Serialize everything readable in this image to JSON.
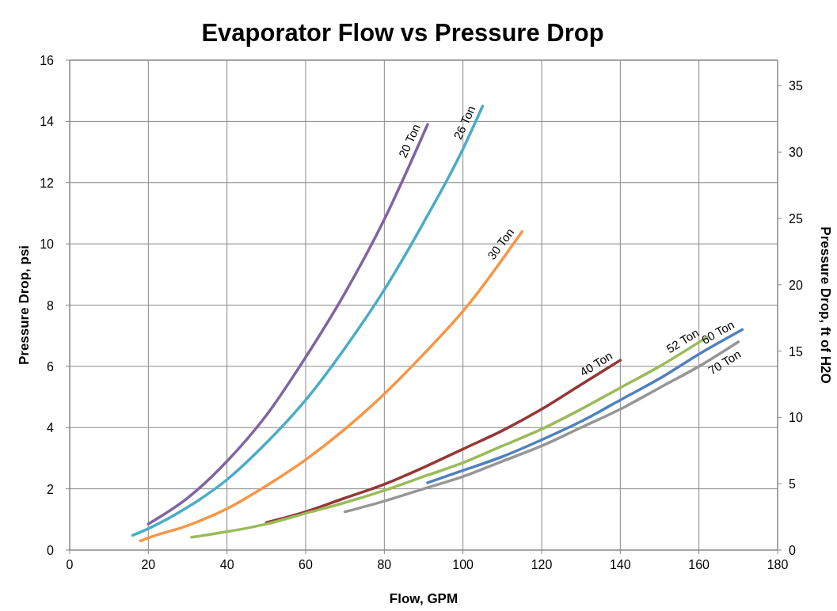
{
  "chart_data": {
    "type": "line",
    "title": "Evaporator Flow vs Pressure Drop",
    "xlabel": "Flow, GPM",
    "ylabel": "Pressure Drop, psi",
    "y2label": "Pressure Drop, ft of H2O",
    "xlim": [
      0,
      180
    ],
    "xticks": [
      0,
      20,
      40,
      60,
      80,
      100,
      120,
      140,
      160,
      180
    ],
    "ylim": [
      0,
      16
    ],
    "yticks": [
      0,
      2,
      4,
      6,
      8,
      10,
      12,
      14,
      16
    ],
    "y2lim": [
      0,
      36.93
    ],
    "y2ticks": [
      0,
      5,
      10,
      15,
      20,
      25,
      30,
      35
    ],
    "grid": true,
    "marker": "none",
    "line_style": "solid",
    "series": [
      {
        "name": "20 Ton",
        "color": "#8064a2",
        "x": [
          20,
          30,
          40,
          50,
          60,
          70,
          80,
          91
        ],
        "values": [
          0.85,
          1.7,
          2.9,
          4.4,
          6.3,
          8.4,
          10.8,
          13.9
        ]
      },
      {
        "name": "26 Ton",
        "color": "#4bacc6",
        "x": [
          16,
          20,
          30,
          40,
          50,
          60,
          70,
          80,
          90,
          100,
          105
        ],
        "values": [
          0.48,
          0.7,
          1.4,
          2.3,
          3.5,
          4.9,
          6.6,
          8.5,
          10.7,
          13.1,
          14.5
        ]
      },
      {
        "name": "30 Ton",
        "color": "#f79646",
        "x": [
          18,
          20,
          30,
          40,
          50,
          60,
          70,
          80,
          90,
          100,
          115
        ],
        "values": [
          0.3,
          0.4,
          0.8,
          1.35,
          2.1,
          2.95,
          3.95,
          5.1,
          6.4,
          7.8,
          10.4
        ]
      },
      {
        "name": "40 Ton",
        "color": "#953735",
        "x": [
          50,
          60,
          70,
          80,
          90,
          100,
          110,
          120,
          130,
          140
        ],
        "values": [
          0.9,
          1.25,
          1.7,
          2.15,
          2.7,
          3.3,
          3.9,
          4.6,
          5.4,
          6.2
        ]
      },
      {
        "name": "52 Ton",
        "color": "#9bbb59",
        "x": [
          31,
          40,
          50,
          60,
          70,
          80,
          90,
          100,
          110,
          120,
          130,
          140,
          150,
          162
        ],
        "values": [
          0.42,
          0.6,
          0.85,
          1.2,
          1.55,
          1.95,
          2.4,
          2.85,
          3.4,
          3.95,
          4.6,
          5.3,
          6.0,
          6.95
        ]
      },
      {
        "name": "60 Ton",
        "color": "#4f81bd",
        "x": [
          91,
          100,
          110,
          120,
          130,
          140,
          150,
          160,
          171
        ],
        "values": [
          2.2,
          2.6,
          3.05,
          3.6,
          4.2,
          4.9,
          5.6,
          6.4,
          7.2
        ]
      },
      {
        "name": "70 Ton",
        "color": "#969696",
        "x": [
          70,
          80,
          90,
          100,
          110,
          120,
          130,
          140,
          150,
          160,
          170
        ],
        "values": [
          1.25,
          1.6,
          2.0,
          2.4,
          2.9,
          3.4,
          4.0,
          4.6,
          5.3,
          6.0,
          6.8
        ]
      }
    ]
  }
}
